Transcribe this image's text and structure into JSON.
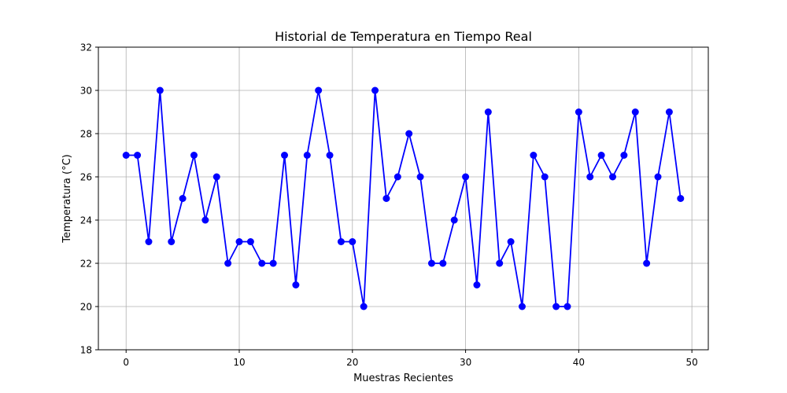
{
  "chart_data": {
    "type": "line",
    "title": "Historial de Temperatura en Tiempo Real",
    "xlabel": "Muestras Recientes",
    "ylabel": "Temperatura (°C)",
    "xlim": [
      -2.45,
      51.45
    ],
    "ylim": [
      18,
      32
    ],
    "xticks": [
      0,
      10,
      20,
      30,
      40,
      50
    ],
    "yticks": [
      18,
      20,
      22,
      24,
      26,
      28,
      30,
      32
    ],
    "grid": true,
    "line_color": "#0000ff",
    "marker": "circle",
    "series": [
      {
        "x": [
          0,
          1,
          2,
          3,
          4,
          5,
          6,
          7,
          8,
          9,
          10,
          11,
          12,
          13,
          14,
          15,
          16,
          17,
          18,
          19,
          20,
          21,
          22,
          23,
          24,
          25,
          26,
          27,
          28,
          29,
          30,
          31,
          32,
          33,
          34,
          35,
          36,
          37,
          38,
          39,
          40,
          41,
          42,
          43,
          44,
          45,
          46,
          47,
          48,
          49
        ],
        "values": [
          27,
          27,
          23,
          30,
          23,
          25,
          27,
          24,
          26,
          22,
          23,
          23,
          22,
          22,
          27,
          21,
          27,
          30,
          27,
          23,
          23,
          20,
          30,
          25,
          26,
          28,
          26,
          22,
          22,
          24,
          26,
          21,
          29,
          22,
          23,
          20,
          27,
          26,
          20,
          20,
          29,
          26,
          27,
          26,
          27,
          29,
          22,
          26,
          29,
          25
        ]
      }
    ]
  }
}
